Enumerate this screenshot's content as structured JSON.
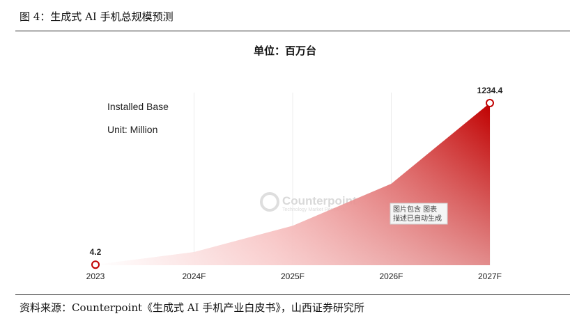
{
  "figure": {
    "title": "图 4：生成式 AI 手机总规模预测",
    "source": "资料来源：Counterpoint《生成式 AI 手机产业白皮书》，山西证券研究所"
  },
  "chart_data": {
    "type": "area",
    "title": "单位：百万台",
    "categories": [
      "2023",
      "2024F",
      "2025F",
      "2026F",
      "2027F"
    ],
    "values": [
      4.2,
      100,
      300,
      620,
      1234.4
    ],
    "data_labels": [
      {
        "category": "2023",
        "text": "4.2"
      },
      {
        "category": "2027F",
        "text": "1234.4"
      }
    ],
    "annotations": [
      "Installed Base",
      "Unit: Million"
    ],
    "ylim": [
      0,
      1234.4
    ],
    "grid": "vertical",
    "color": "#c00000",
    "watermark": {
      "main": "Counterpoint",
      "sub": "Technology Market Research"
    },
    "stamp": [
      "图片包含 图表",
      "描述已自动生成"
    ]
  }
}
